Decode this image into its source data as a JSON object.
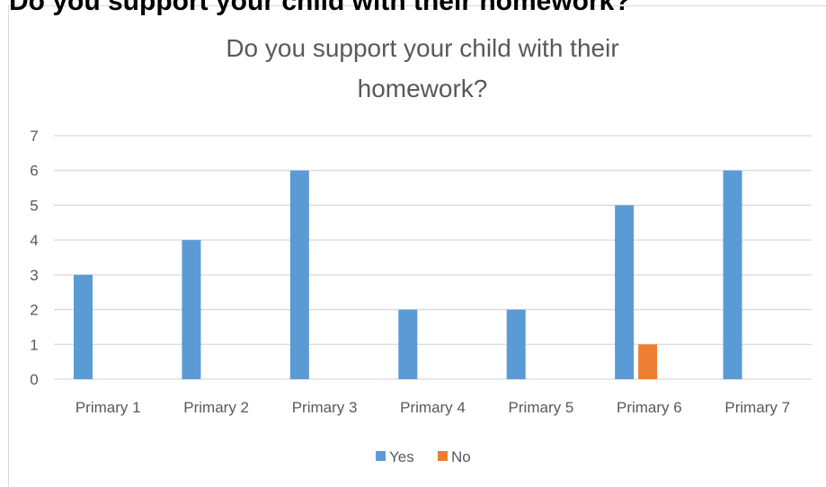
{
  "page_heading_cut": "Do you support your child with their homework?",
  "colors": {
    "yes": "#5b9bd5",
    "no": "#ed7d31",
    "grid": "#d9d9d9",
    "text": "#595959"
  },
  "chart_data": {
    "type": "bar",
    "title_lines": [
      "Do you support your child with their",
      "homework?"
    ],
    "categories": [
      "Primary 1",
      "Primary 2",
      "Primary 3",
      "Primary 4",
      "Primary 5",
      "Primary 6",
      "Primary 7"
    ],
    "series": [
      {
        "name": "Yes",
        "values": [
          3,
          4,
          6,
          2,
          2,
          5,
          6
        ]
      },
      {
        "name": "No",
        "values": [
          0,
          0,
          0,
          0,
          0,
          1,
          0
        ]
      }
    ],
    "ylim": [
      0,
      7
    ],
    "yticks": [
      0,
      1,
      2,
      3,
      4,
      5,
      6,
      7
    ],
    "grid": true,
    "legend": "bottom"
  }
}
